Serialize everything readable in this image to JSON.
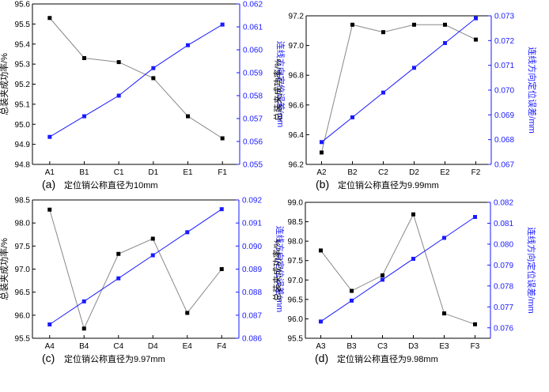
{
  "chart_data": [
    {
      "type": "line",
      "panel_label": "(a)",
      "caption": "定位销公称直径为10mm",
      "categories": [
        "A1",
        "B1",
        "C1",
        "D1",
        "E1",
        "F1"
      ],
      "ylabel": "总装夹成功率/%",
      "y2label": "连线方向定位误差/mm",
      "ylim": [
        94.8,
        95.6
      ],
      "yticks": [
        "94.8",
        "94.9",
        "95.0",
        "95.1",
        "95.2",
        "95.3",
        "95.4",
        "95.5",
        "95.6"
      ],
      "y2lim": [
        0.055,
        0.062
      ],
      "y2ticks": [
        "0.055",
        "0.056",
        "0.057",
        "0.058",
        "0.059",
        "0.060",
        "0.061",
        "0.062"
      ],
      "series": [
        {
          "axis": "left",
          "color": "#888888",
          "marker_color": "#000000",
          "values": [
            95.53,
            95.33,
            95.31,
            95.23,
            95.04,
            94.93
          ]
        },
        {
          "axis": "right",
          "color": "#1a1aff",
          "marker_color": "#1a1aff",
          "values": [
            0.0562,
            0.0571,
            0.058,
            0.0592,
            0.0602,
            0.0611
          ]
        }
      ]
    },
    {
      "type": "line",
      "panel_label": "(b)",
      "caption": "定位销公称直径为9.99mm",
      "categories": [
        "A2",
        "B2",
        "C2",
        "D2",
        "E2",
        "F2"
      ],
      "ylabel": "总装夹成功率/%",
      "y2label": "连线方向定位误差/mm",
      "ylim": [
        96.2,
        97.2
      ],
      "yticks": [
        "96.2",
        "96.4",
        "96.6",
        "96.8",
        "97.0",
        "97.2"
      ],
      "y2lim": [
        0.067,
        0.073
      ],
      "y2ticks": [
        "0.067",
        "0.068",
        "0.069",
        "0.070",
        "0.071",
        "0.072",
        "0.073"
      ],
      "series": [
        {
          "axis": "left",
          "color": "#888888",
          "marker_color": "#000000",
          "values": [
            96.28,
            97.14,
            97.09,
            97.14,
            97.14,
            97.04
          ]
        },
        {
          "axis": "right",
          "color": "#1a1aff",
          "marker_color": "#1a1aff",
          "values": [
            0.0679,
            0.0689,
            0.0699,
            0.0709,
            0.0719,
            0.0729
          ]
        }
      ]
    },
    {
      "type": "line",
      "panel_label": "(c)",
      "caption": "定位销公称直径为9.97mm",
      "categories": [
        "A4",
        "B4",
        "C4",
        "D4",
        "E4",
        "F4"
      ],
      "ylabel": "总装夹成功率/%",
      "y2label": "连线方向定位误差/mm",
      "ylim": [
        95.5,
        98.5
      ],
      "yticks": [
        "95.5",
        "96.0",
        "96.5",
        "97.0",
        "97.5",
        "98.0",
        "98.5"
      ],
      "y2lim": [
        0.086,
        0.092
      ],
      "y2ticks": [
        "0.086",
        "0.087",
        "0.088",
        "0.089",
        "0.090",
        "0.091",
        "0.092"
      ],
      "series": [
        {
          "axis": "left",
          "color": "#888888",
          "marker_color": "#000000",
          "values": [
            98.29,
            95.71,
            97.33,
            97.66,
            96.05,
            97.0
          ]
        },
        {
          "axis": "right",
          "color": "#1a1aff",
          "marker_color": "#1a1aff",
          "values": [
            0.0866,
            0.0876,
            0.0886,
            0.0896,
            0.0906,
            0.0916
          ]
        }
      ]
    },
    {
      "type": "line",
      "panel_label": "(d)",
      "caption": "定位销公称直径为9.98mm",
      "categories": [
        "A3",
        "B3",
        "C3",
        "D3",
        "E3",
        "F3"
      ],
      "ylabel": "总装夹成功率/%",
      "y2label": "连线方向定位误差/mm",
      "ylim": [
        95.5,
        99.0
      ],
      "yticks": [
        "95.5",
        "96.0",
        "96.5",
        "97.0",
        "97.5",
        "98.0",
        "98.5",
        "99.0"
      ],
      "y2lim": [
        0.0755,
        0.082
      ],
      "y2ticks": [
        "0.076",
        "0.077",
        "0.078",
        "0.079",
        "0.080",
        "0.081",
        "0.082"
      ],
      "series": [
        {
          "axis": "left",
          "color": "#888888",
          "marker_color": "#000000",
          "values": [
            97.76,
            96.72,
            97.12,
            98.69,
            96.14,
            95.86
          ]
        },
        {
          "axis": "right",
          "color": "#1a1aff",
          "marker_color": "#1a1aff",
          "values": [
            0.0763,
            0.0773,
            0.0783,
            0.0793,
            0.0803,
            0.0813
          ]
        }
      ]
    }
  ]
}
